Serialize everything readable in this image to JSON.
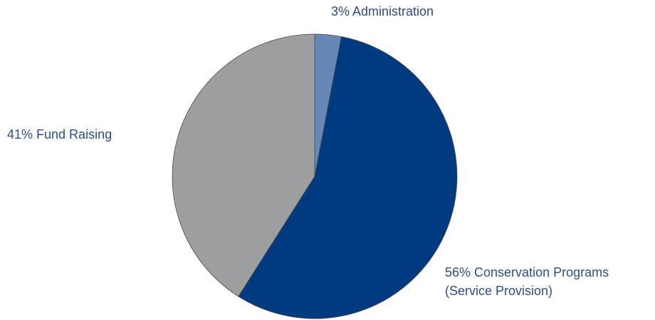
{
  "chart_data": {
    "type": "pie",
    "title": "",
    "start_angle_deg": 0,
    "direction": "clockwise",
    "slices": [
      {
        "label_lines": [
          "3% Administration"
        ],
        "value": 3,
        "color": "#6787b7"
      },
      {
        "label_lines": [
          "56% Conservation Programs",
          "(Service Provision)"
        ],
        "value": 56,
        "color": "#003a80"
      },
      {
        "label_lines": [
          "41% Fund Raising"
        ],
        "value": 41,
        "color": "#9d9ea0"
      }
    ],
    "legend": "none",
    "label_color": "#2b4e8c",
    "edge_color": "#4a4a4a"
  }
}
